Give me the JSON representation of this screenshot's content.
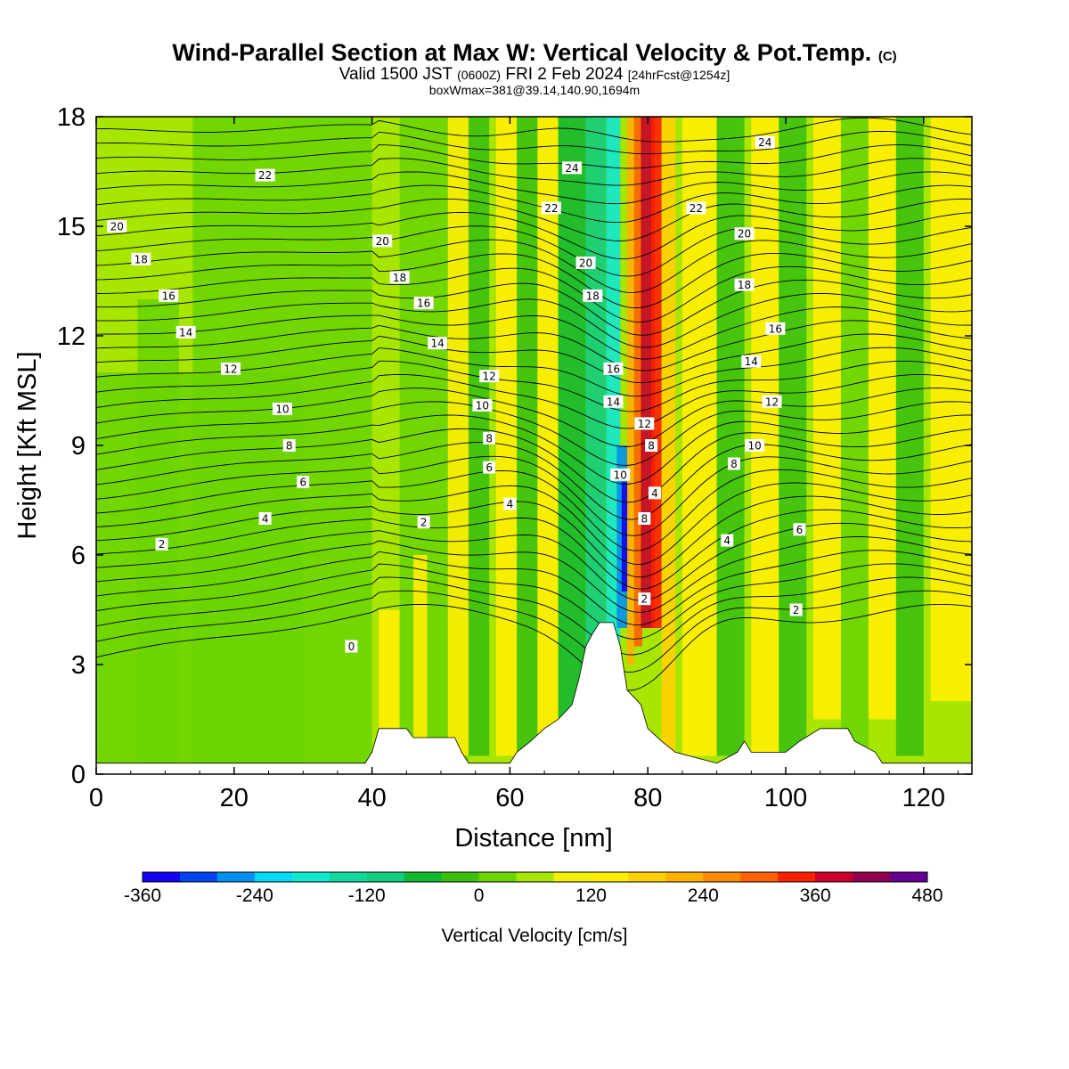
{
  "header": {
    "title": "Wind-Parallel Section at Max W: Vertical Velocity & Pot.Temp.",
    "copyright": "(C)",
    "valid_prefix": "Valid 1500 JST",
    "valid_z": "(0600Z)",
    "valid_date": "FRI 2 Feb 2024",
    "valid_fcst": "[24hrFcst@1254z]",
    "subtitle2": "boxWmax=381@39.14,140.90,1694m"
  },
  "chart_data": {
    "type": "heatmap",
    "title": "Wind-Parallel Section at Max W: Vertical Velocity & Pot.Temp.",
    "xlabel": "Distance [nm]",
    "ylabel": "Height [Kft MSL]",
    "xlim": [
      0,
      127
    ],
    "ylim": [
      0,
      18
    ],
    "x_ticks": [
      0,
      20,
      40,
      60,
      80,
      100,
      120
    ],
    "y_ticks": [
      0,
      3,
      6,
      9,
      12,
      15,
      18
    ],
    "colorbar": {
      "label": "Vertical Velocity [cm/s]",
      "ticks": [
        -360,
        -240,
        -120,
        0,
        120,
        240,
        360,
        480
      ],
      "levels": [
        -360,
        -330,
        -300,
        -270,
        -240,
        -210,
        -180,
        -150,
        -120,
        -90,
        -60,
        -30,
        0,
        30,
        60,
        90,
        120,
        150,
        180,
        210,
        240,
        270,
        300,
        330,
        360,
        390,
        420,
        450,
        480
      ],
      "colors": [
        "#1400f5",
        "#0044f0",
        "#0090f0",
        "#00d8f8",
        "#10e8d0",
        "#12d8a0",
        "#12cc80",
        "#14b830",
        "#3cc010",
        "#6cd400",
        "#a8e600",
        "#f0f000",
        "#ffee00",
        "#ffd000",
        "#ffb000",
        "#ff8c00",
        "#ff6000",
        "#ff2000",
        "#c8002a",
        "#900050",
        "#640090"
      ],
      "bar_tick_labels": [
        "-360",
        "-240",
        "-120",
        "0",
        "120",
        "240",
        "360",
        "480"
      ]
    },
    "theta_contours": {
      "units": "C",
      "levels": [
        0,
        2,
        4,
        6,
        8,
        10,
        12,
        14,
        16,
        18,
        20,
        22,
        24
      ],
      "labels": [
        {
          "x": 37.0,
          "y": 3.5,
          "text": "0"
        },
        {
          "x": 9.5,
          "y": 6.3,
          "text": "2"
        },
        {
          "x": 24.5,
          "y": 7.0,
          "text": "4"
        },
        {
          "x": 30.0,
          "y": 8.0,
          "text": "6"
        },
        {
          "x": 28.0,
          "y": 9.0,
          "text": "8"
        },
        {
          "x": 27.0,
          "y": 10.0,
          "text": "10"
        },
        {
          "x": 19.5,
          "y": 11.1,
          "text": "12"
        },
        {
          "x": 13.0,
          "y": 12.1,
          "text": "14"
        },
        {
          "x": 10.5,
          "y": 13.1,
          "text": "16"
        },
        {
          "x": 6.5,
          "y": 14.1,
          "text": "18"
        },
        {
          "x": 3.0,
          "y": 15.0,
          "text": "20"
        },
        {
          "x": 24.5,
          "y": 16.4,
          "text": "22"
        },
        {
          "x": 41.5,
          "y": 14.6,
          "text": "20"
        },
        {
          "x": 44.0,
          "y": 13.6,
          "text": "18"
        },
        {
          "x": 47.5,
          "y": 12.9,
          "text": "16"
        },
        {
          "x": 49.5,
          "y": 11.8,
          "text": "14"
        },
        {
          "x": 57.0,
          "y": 10.9,
          "text": "12"
        },
        {
          "x": 56.0,
          "y": 10.1,
          "text": "10"
        },
        {
          "x": 57.0,
          "y": 9.2,
          "text": "8"
        },
        {
          "x": 57.0,
          "y": 8.4,
          "text": "6"
        },
        {
          "x": 60.0,
          "y": 7.4,
          "text": "4"
        },
        {
          "x": 47.5,
          "y": 6.9,
          "text": "2"
        },
        {
          "x": 69.0,
          "y": 16.6,
          "text": "24"
        },
        {
          "x": 66.0,
          "y": 15.5,
          "text": "22"
        },
        {
          "x": 71.0,
          "y": 14.0,
          "text": "20"
        },
        {
          "x": 72.0,
          "y": 13.1,
          "text": "18"
        },
        {
          "x": 75.0,
          "y": 11.1,
          "text": "16"
        },
        {
          "x": 75.0,
          "y": 10.2,
          "text": "14"
        },
        {
          "x": 76.0,
          "y": 8.2,
          "text": "10"
        },
        {
          "x": 79.5,
          "y": 9.6,
          "text": "12"
        },
        {
          "x": 80.5,
          "y": 9.0,
          "text": "8"
        },
        {
          "x": 81.0,
          "y": 7.7,
          "text": "4"
        },
        {
          "x": 79.5,
          "y": 7.0,
          "text": "8"
        },
        {
          "x": 79.5,
          "y": 4.8,
          "text": "2"
        },
        {
          "x": 97.0,
          "y": 17.3,
          "text": "24"
        },
        {
          "x": 87.0,
          "y": 15.5,
          "text": "22"
        },
        {
          "x": 94.0,
          "y": 14.8,
          "text": "20"
        },
        {
          "x": 94.0,
          "y": 13.4,
          "text": "18"
        },
        {
          "x": 98.5,
          "y": 12.2,
          "text": "16"
        },
        {
          "x": 95.0,
          "y": 11.3,
          "text": "14"
        },
        {
          "x": 98.0,
          "y": 10.2,
          "text": "12"
        },
        {
          "x": 95.5,
          "y": 9.0,
          "text": "10"
        },
        {
          "x": 92.5,
          "y": 8.5,
          "text": "8"
        },
        {
          "x": 102.0,
          "y": 6.7,
          "text": "6"
        },
        {
          "x": 91.5,
          "y": 6.4,
          "text": "4"
        },
        {
          "x": 101.5,
          "y": 4.5,
          "text": "2"
        }
      ]
    }
  }
}
